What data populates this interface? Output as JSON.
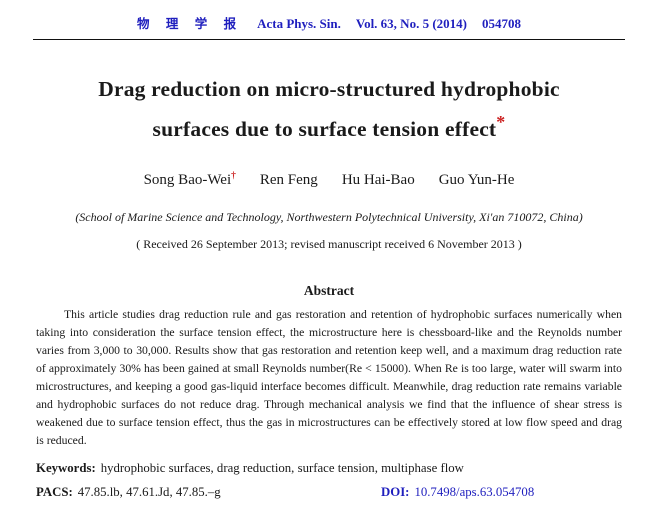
{
  "header": {
    "journal_cn": "物 理 学 报",
    "journal_en": "Acta Phys. Sin.",
    "volume_info": "Vol. 63, No. 5 (2014)",
    "article_no": "054708"
  },
  "title": {
    "line1": "Drag reduction on micro-structured hydrophobic",
    "line2": "surfaces due to surface tension effect",
    "footnote_mark": "*"
  },
  "authors": [
    {
      "name": "Song Bao-Wei",
      "mark": "†"
    },
    {
      "name": "Ren Feng",
      "mark": ""
    },
    {
      "name": "Hu Hai-Bao",
      "mark": ""
    },
    {
      "name": "Guo Yun-He",
      "mark": ""
    }
  ],
  "affiliation": "(School of Marine Science and Technology, Northwestern Polytechnical University, Xi'an 710072, China)",
  "received": "( Received 26 September 2013; revised manuscript received 6 November 2013 )",
  "abstract": {
    "heading": "Abstract",
    "text": "This article studies drag reduction rule and gas restoration and retention of hydrophobic surfaces numerically when taking into consideration the surface tension effect, the microstructure here is chessboard-like and the Reynolds number varies from 3,000 to 30,000. Results show that gas restoration and retention keep well, and a maximum drag reduction rate of approximately 30% has been gained at small Reynolds number(Re < 15000). When Re is too large, water will swarm into microstructures, and keeping a good gas-liquid interface becomes difficult. Meanwhile, drag reduction rate remains variable and hydrophobic surfaces do not reduce drag. Through mechanical analysis we find that the influence of shear stress is weakened due to surface tension effect, thus the gas in microstructures can be effectively stored at low flow speed and drag is reduced."
  },
  "keywords": {
    "label": "Keywords:",
    "value": "hydrophobic surfaces, drag reduction, surface tension, multiphase flow"
  },
  "pacs": {
    "label": "PACS:",
    "value": "47.85.lb, 47.61.Jd, 47.85.–g"
  },
  "doi": {
    "label": "DOI:",
    "value": "10.7498/aps.63.054708"
  },
  "colors": {
    "header_blue": "#1f1fbe",
    "accent_red": "#cc2222"
  }
}
